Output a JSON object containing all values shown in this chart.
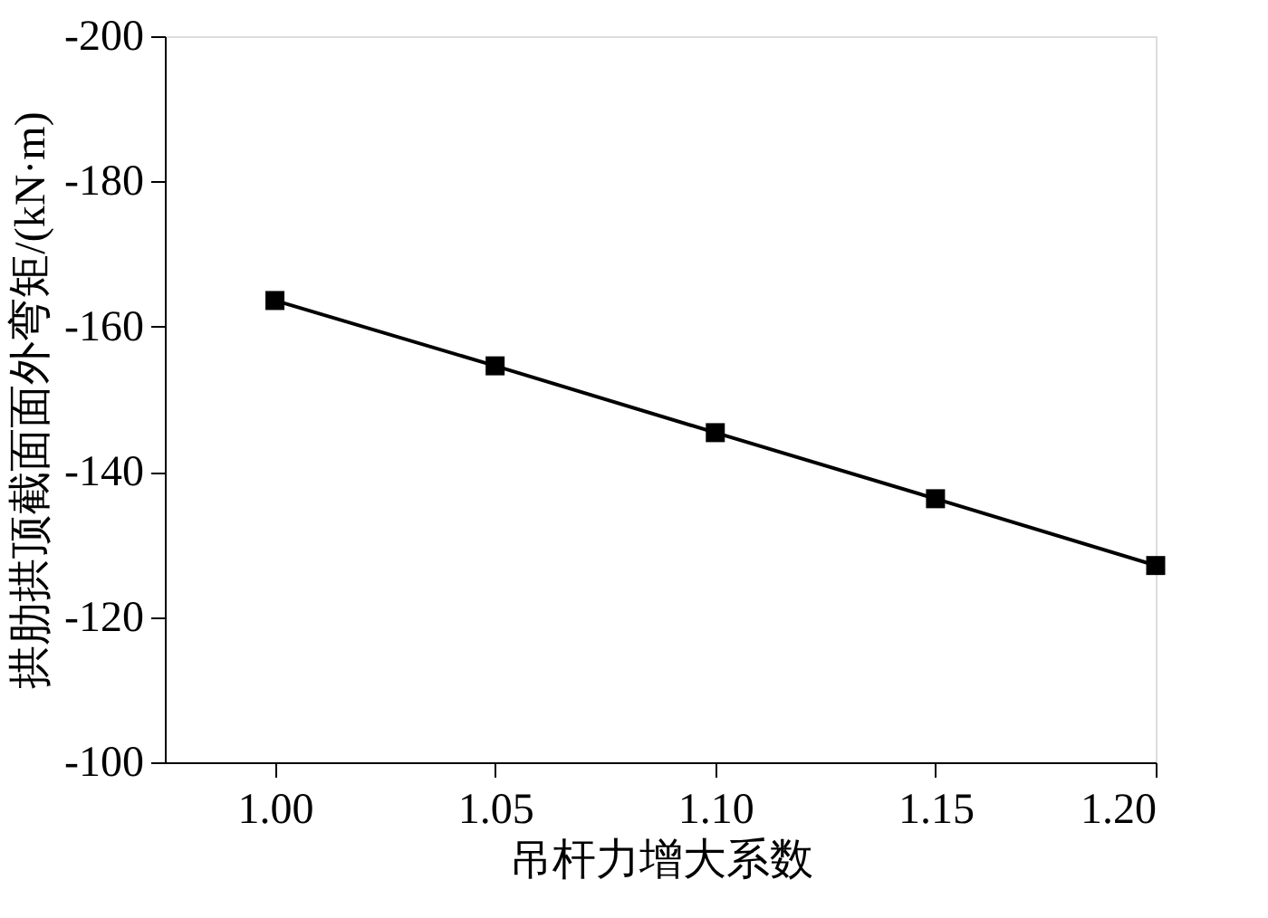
{
  "chart_data": {
    "type": "line",
    "xlabel": "吊杆力增大系数",
    "ylabel": "拱肋拱顶截面面外弯矩/(kN·m)",
    "x": [
      1.0,
      1.05,
      1.1,
      1.15,
      1.2
    ],
    "series": [
      {
        "color": "#000000",
        "values": [
          -163.6,
          -154.6,
          -145.4,
          -136.3,
          -127.1
        ]
      }
    ],
    "xlim": [
      0.975,
      1.2
    ],
    "xticks": [
      {
        "value": 1.0,
        "label": "1.00"
      },
      {
        "value": 1.05,
        "label": "1.05"
      },
      {
        "value": 1.1,
        "label": "1.10"
      },
      {
        "value": 1.15,
        "label": "1.15"
      },
      {
        "value": 1.2,
        "label": "1.20"
      }
    ],
    "ylim": [
      -100,
      -200
    ],
    "yticks": [
      -100,
      -120,
      -140,
      -160,
      -180,
      -200
    ],
    "marker": "square",
    "line_style": "solid",
    "grid": false
  }
}
